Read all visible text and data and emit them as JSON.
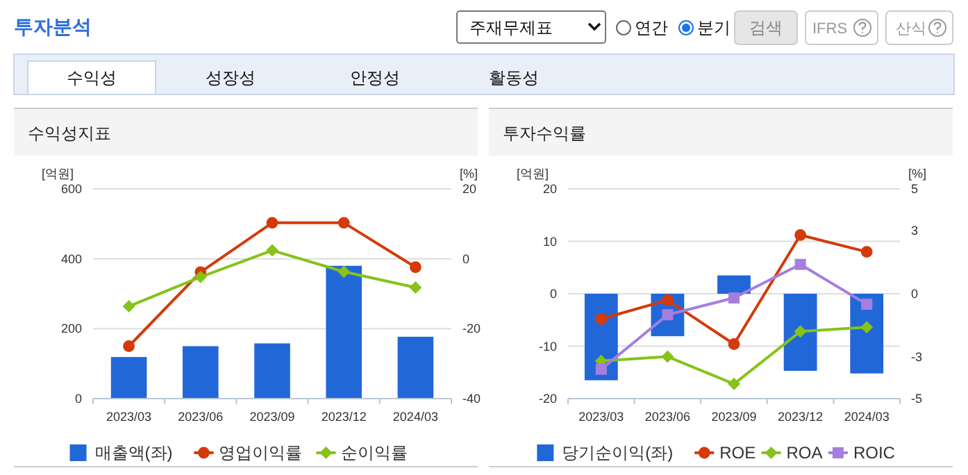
{
  "chart_data": [
    {
      "type": "other",
      "title": "투자분석",
      "annotations": [
        "주재무제표",
        "연간",
        "분기",
        "검색",
        "IFRS",
        "산식",
        "수익성",
        "성장성",
        "안정성",
        "활동성"
      ]
    },
    {
      "type": "bar",
      "title": "수익성지표",
      "ylabel": "[억원]",
      "y2label": "[%]",
      "categories": [
        "2023/03",
        "2023/06",
        "2023/09",
        "2023/12",
        "2024/03"
      ],
      "ylim": [
        0,
        600
      ],
      "yticks": [
        0,
        200,
        400,
        600
      ],
      "y2lim": [
        -40,
        20
      ],
      "y2ticks": [
        -40,
        -20,
        0,
        20
      ],
      "grid": "y",
      "legend": "bottom",
      "series": [
        {
          "name": "매출액(좌)",
          "type": "bar",
          "color": "#2267d8",
          "values": [
            119,
            150,
            158,
            380,
            177
          ]
        },
        {
          "name": "영업이익률",
          "type": "line",
          "axis": "y2",
          "marker": "circle",
          "color": "#d43a0a",
          "values": [
            -25.0,
            -3.8,
            10.3,
            10.3,
            -2.4
          ]
        },
        {
          "name": "순이익률",
          "type": "line",
          "axis": "y2",
          "marker": "diamond",
          "color": "#86c21a",
          "values": [
            -13.6,
            -5.2,
            2.4,
            -3.7,
            -8.2
          ]
        }
      ]
    },
    {
      "type": "bar",
      "title": "투자수익률",
      "ylabel": "[억원]",
      "y2label": "[%]",
      "categories": [
        "2023/03",
        "2023/06",
        "2023/09",
        "2023/12",
        "2024/03"
      ],
      "ylim": [
        -20,
        20
      ],
      "yticks": [
        -20,
        -10,
        0,
        10,
        20
      ],
      "y2lim": [
        -5,
        5
      ],
      "y2ticks": [
        -5,
        -3,
        0,
        3,
        5
      ],
      "grid": "y",
      "legend": "bottom",
      "series": [
        {
          "name": "당기순이익(좌)",
          "type": "bar",
          "color": "#2267d8",
          "values": [
            -16.5,
            -8.1,
            3.5,
            -14.7,
            -15.2
          ]
        },
        {
          "name": "ROE",
          "type": "line",
          "axis": "y2",
          "marker": "circle",
          "color": "#d43a0a",
          "values": [
            -1.2,
            -0.3,
            -2.4,
            2.8,
            2.0
          ]
        },
        {
          "name": "ROA",
          "type": "line",
          "axis": "y2",
          "marker": "diamond",
          "color": "#86c21a",
          "values": [
            -3.2,
            -3.0,
            -4.3,
            -1.8,
            -1.6
          ]
        },
        {
          "name": "ROIC",
          "type": "line",
          "axis": "y2",
          "marker": "square",
          "color": "#a57ee0",
          "values": [
            -3.6,
            -1.0,
            -0.2,
            1.4,
            -0.5
          ]
        }
      ]
    }
  ]
}
